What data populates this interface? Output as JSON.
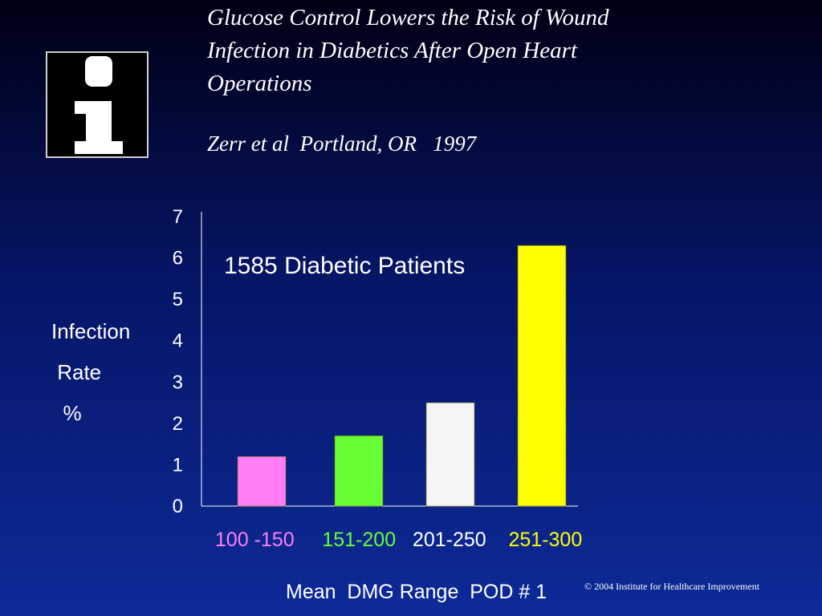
{
  "logo": {
    "icon": "information-i-icon"
  },
  "title_lines": [
    "Glucose Control Lowers the Risk of Wound",
    "Infection in Diabetics After Open Heart",
    "Operations"
  ],
  "subtitle": "Zerr et al  Portland, OR   1997",
  "ylabel_lines": [
    "Infection",
    " Rate",
    "  %"
  ],
  "annotation": "1585 Diabetic Patients",
  "xtick_prefixes": [
    "  ",
    "     ",
    "   ",
    "    "
  ],
  "xlabel": "Mean  DMG Range  POD # 1",
  "copyright": "© 2004 Institute for Healthcare Improvement",
  "colors": {
    "bar_100_150": "#ff7ef5",
    "bar_151_200": "#66ff33",
    "bar_201_250": "#f5f5f5",
    "bar_251_300": "#ffff00",
    "background_top": "#000014",
    "background_bottom": "#0d2a98"
  },
  "chart_data": {
    "type": "bar",
    "categories": [
      "100 -150",
      "151-200",
      "201-250",
      "251-300"
    ],
    "values": [
      1.2,
      1.7,
      2.5,
      6.3
    ],
    "bar_colors": [
      "#ff7ef5",
      "#66ff33",
      "#f5f5f5",
      "#ffff00"
    ],
    "xlabel": "Mean  DMG Range  POD # 1",
    "ylabel": "Infection Rate %",
    "ylim": [
      0,
      7
    ],
    "yticks": [
      0,
      1,
      2,
      3,
      4,
      5,
      6,
      7
    ],
    "grid": false
  }
}
